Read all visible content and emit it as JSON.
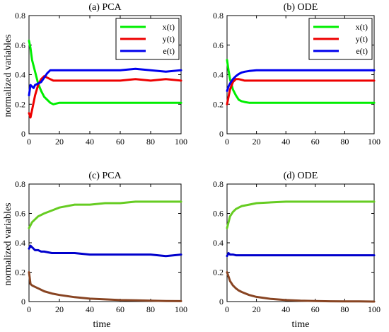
{
  "figure": {
    "ylabel": "normalized variables",
    "xlabel": "time"
  },
  "chart_data": [
    {
      "type": "line",
      "title": "(a) PCA",
      "xlim": [
        0,
        100
      ],
      "ylim": [
        0,
        0.8
      ],
      "xticks": [
        0,
        20,
        40,
        60,
        80,
        100
      ],
      "yticks": [
        0,
        0.2,
        0.4,
        0.6,
        0.8
      ],
      "legend": "top-right",
      "series": [
        {
          "name": "x(t)",
          "color": "#00ee00",
          "x": [
            0,
            1,
            2,
            4,
            6,
            8,
            10,
            12,
            14,
            16,
            20,
            30,
            40,
            50,
            60,
            70,
            80,
            90,
            100
          ],
          "y": [
            0.63,
            0.58,
            0.5,
            0.42,
            0.34,
            0.29,
            0.25,
            0.23,
            0.21,
            0.2,
            0.21,
            0.21,
            0.21,
            0.21,
            0.21,
            0.21,
            0.21,
            0.21,
            0.21
          ]
        },
        {
          "name": "y(t)",
          "color": "#ee0000",
          "x": [
            0,
            1,
            2,
            4,
            6,
            8,
            10,
            12,
            14,
            16,
            20,
            30,
            40,
            50,
            60,
            70,
            80,
            90,
            100
          ],
          "y": [
            0.14,
            0.11,
            0.16,
            0.26,
            0.33,
            0.37,
            0.39,
            0.38,
            0.37,
            0.36,
            0.36,
            0.36,
            0.36,
            0.36,
            0.36,
            0.37,
            0.36,
            0.37,
            0.36
          ]
        },
        {
          "name": "e(t)",
          "color": "#0000ee",
          "x": [
            0,
            1,
            2,
            3,
            4,
            6,
            8,
            10,
            12,
            14,
            16,
            20,
            30,
            40,
            50,
            60,
            70,
            80,
            90,
            100
          ],
          "y": [
            0.26,
            0.33,
            0.32,
            0.31,
            0.33,
            0.34,
            0.35,
            0.38,
            0.41,
            0.43,
            0.43,
            0.43,
            0.43,
            0.43,
            0.43,
            0.43,
            0.44,
            0.43,
            0.42,
            0.43
          ]
        }
      ]
    },
    {
      "type": "line",
      "title": "(b) ODE",
      "xlim": [
        0,
        100
      ],
      "ylim": [
        0,
        0.8
      ],
      "xticks": [
        0,
        20,
        40,
        60,
        80,
        100
      ],
      "yticks": [
        0,
        0.2,
        0.4,
        0.6,
        0.8
      ],
      "legend": "top-right",
      "series": [
        {
          "name": "x(t)",
          "color": "#00ee00",
          "x": [
            0,
            1,
            2,
            4,
            6,
            8,
            10,
            12,
            15,
            20,
            30,
            40,
            50,
            60,
            70,
            80,
            90,
            100
          ],
          "y": [
            0.5,
            0.43,
            0.37,
            0.3,
            0.26,
            0.23,
            0.22,
            0.215,
            0.21,
            0.21,
            0.21,
            0.21,
            0.21,
            0.21,
            0.21,
            0.21,
            0.21,
            0.21
          ]
        },
        {
          "name": "y(t)",
          "color": "#ee0000",
          "x": [
            0,
            1,
            2,
            4,
            6,
            8,
            10,
            12,
            15,
            20,
            30,
            40,
            50,
            60,
            70,
            80,
            90,
            100
          ],
          "y": [
            0.2,
            0.25,
            0.3,
            0.35,
            0.37,
            0.37,
            0.365,
            0.36,
            0.36,
            0.36,
            0.36,
            0.36,
            0.36,
            0.36,
            0.36,
            0.36,
            0.36,
            0.36
          ]
        },
        {
          "name": "e(t)",
          "color": "#0000ee",
          "x": [
            0,
            1,
            2,
            4,
            6,
            8,
            10,
            12,
            15,
            20,
            30,
            40,
            50,
            60,
            70,
            80,
            90,
            100
          ],
          "y": [
            0.29,
            0.32,
            0.34,
            0.37,
            0.39,
            0.405,
            0.415,
            0.42,
            0.425,
            0.43,
            0.43,
            0.43,
            0.43,
            0.43,
            0.43,
            0.43,
            0.43,
            0.43
          ]
        }
      ]
    },
    {
      "type": "line",
      "title": "(c) PCA",
      "xlim": [
        0,
        100
      ],
      "ylim": [
        0,
        0.8
      ],
      "xticks": [
        0,
        20,
        40,
        60,
        80,
        100
      ],
      "yticks": [
        0,
        0.2,
        0.4,
        0.6,
        0.8
      ],
      "series": [
        {
          "color": "#66cc22",
          "x": [
            0,
            2,
            4,
            6,
            8,
            10,
            15,
            20,
            30,
            40,
            50,
            60,
            70,
            80,
            90,
            100
          ],
          "y": [
            0.5,
            0.54,
            0.56,
            0.58,
            0.59,
            0.6,
            0.62,
            0.64,
            0.66,
            0.66,
            0.67,
            0.67,
            0.68,
            0.68,
            0.68,
            0.68
          ]
        },
        {
          "color": "#0000cc",
          "x": [
            0,
            1,
            2,
            4,
            6,
            8,
            10,
            15,
            20,
            30,
            40,
            50,
            60,
            70,
            80,
            90,
            100
          ],
          "y": [
            0.36,
            0.38,
            0.37,
            0.35,
            0.35,
            0.34,
            0.34,
            0.33,
            0.33,
            0.33,
            0.32,
            0.32,
            0.32,
            0.32,
            0.32,
            0.31,
            0.32
          ]
        },
        {
          "color": "#884422",
          "x": [
            0,
            1,
            2,
            4,
            6,
            8,
            10,
            15,
            20,
            30,
            40,
            50,
            60,
            70,
            80,
            90,
            100
          ],
          "y": [
            0.2,
            0.12,
            0.11,
            0.1,
            0.09,
            0.08,
            0.07,
            0.055,
            0.045,
            0.03,
            0.02,
            0.015,
            0.01,
            0.008,
            0.006,
            0.004,
            0.003
          ]
        }
      ]
    },
    {
      "type": "line",
      "title": "(d) ODE",
      "xlim": [
        0,
        100
      ],
      "ylim": [
        0,
        0.8
      ],
      "xticks": [
        0,
        20,
        40,
        60,
        80,
        100
      ],
      "yticks": [
        0,
        0.2,
        0.4,
        0.6,
        0.8
      ],
      "series": [
        {
          "color": "#66cc22",
          "x": [
            0,
            2,
            4,
            6,
            8,
            10,
            15,
            20,
            30,
            40,
            50,
            60,
            70,
            80,
            90,
            100
          ],
          "y": [
            0.5,
            0.58,
            0.61,
            0.63,
            0.64,
            0.65,
            0.66,
            0.67,
            0.675,
            0.68,
            0.68,
            0.68,
            0.68,
            0.68,
            0.68,
            0.68
          ]
        },
        {
          "color": "#0000cc",
          "x": [
            0,
            1,
            2,
            4,
            6,
            10,
            20,
            40,
            60,
            80,
            100
          ],
          "y": [
            0.31,
            0.33,
            0.32,
            0.32,
            0.315,
            0.315,
            0.315,
            0.315,
            0.315,
            0.315,
            0.315
          ]
        },
        {
          "color": "#884422",
          "x": [
            0,
            1,
            2,
            4,
            6,
            8,
            10,
            15,
            20,
            30,
            40,
            50,
            60,
            70,
            80,
            90,
            100
          ],
          "y": [
            0.2,
            0.17,
            0.14,
            0.11,
            0.09,
            0.075,
            0.065,
            0.045,
            0.032,
            0.018,
            0.01,
            0.006,
            0.004,
            0.002,
            0.001,
            0.001,
            0.0
          ]
        }
      ]
    }
  ]
}
